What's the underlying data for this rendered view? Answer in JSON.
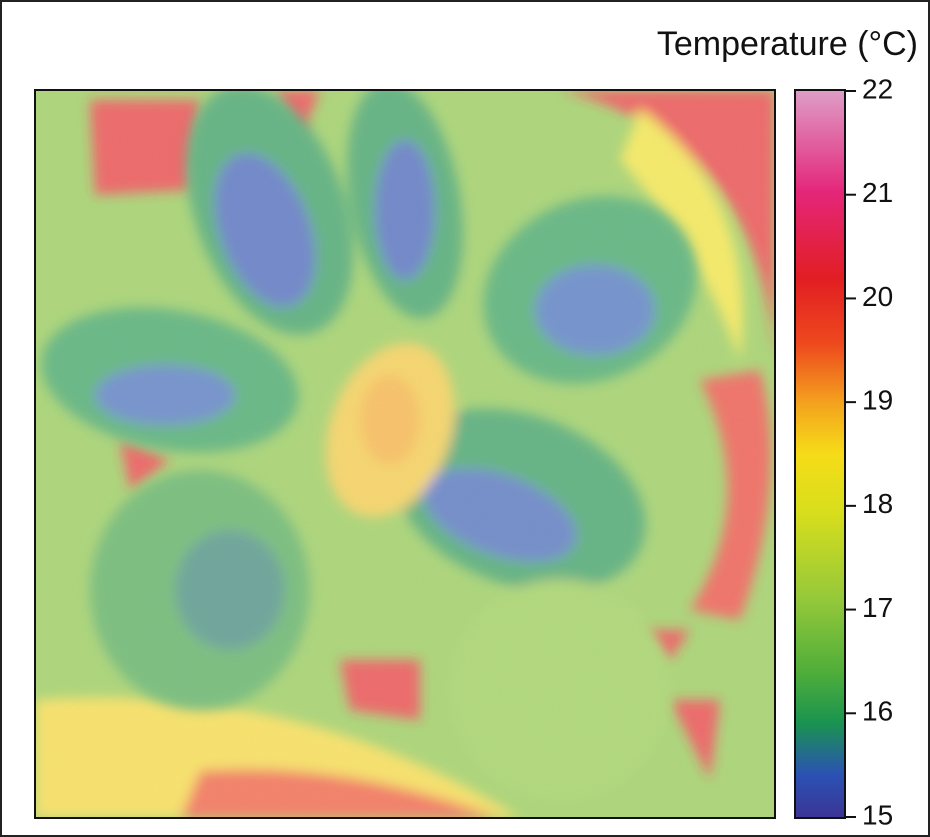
{
  "colorbar": {
    "title": "Temperature (°C)",
    "lim": [
      15,
      22
    ],
    "ticks": [
      15,
      16,
      17,
      18,
      19,
      20,
      21,
      22
    ]
  }
}
